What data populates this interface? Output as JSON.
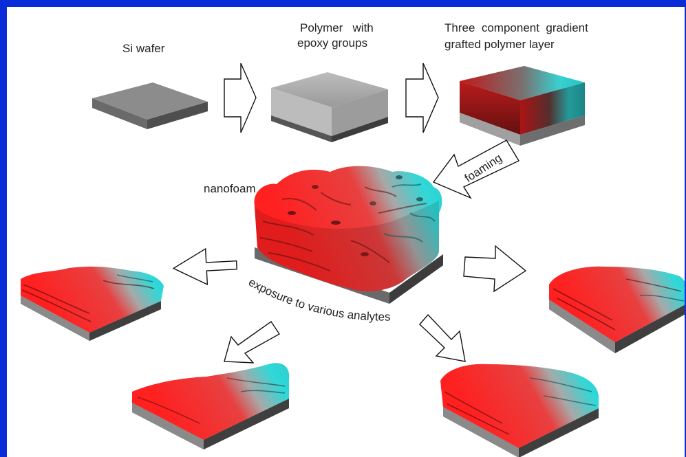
{
  "labels": {
    "si_wafer": "Si wafer",
    "polymer_line1": "Polymer   with",
    "polymer_line2": "epoxy groups",
    "gradient_line1": "Three  component  gradient",
    "gradient_line2": "grafted polymer layer",
    "foaming": "foaming",
    "nanofoam": "nanofoam",
    "exposure": "exposure to various analytes"
  },
  "colors": {
    "frame": "#0a2bd8",
    "red": "#ff2020",
    "cyan": "#2fd6d6",
    "wafer": "#8a8a8a"
  }
}
